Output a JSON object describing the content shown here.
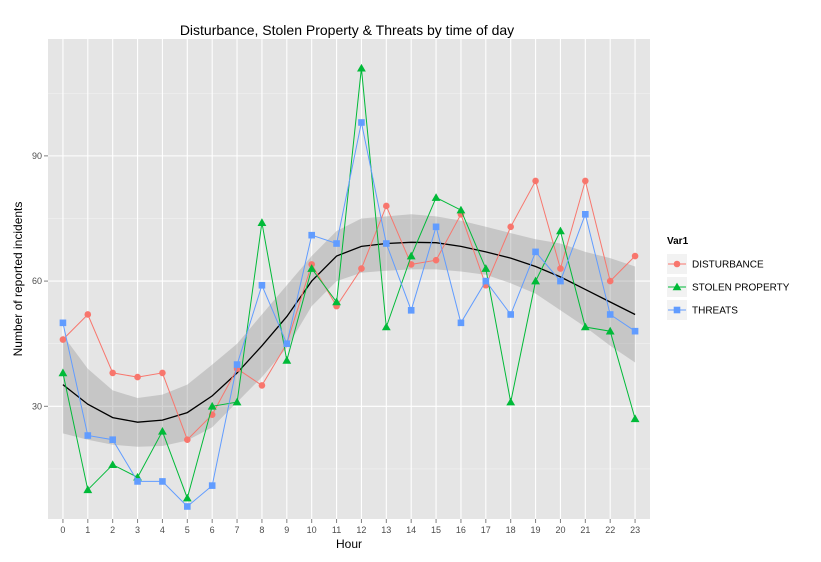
{
  "chart_data": {
    "type": "line",
    "title": "Disturbance, Stolen Property & Threats by time of day",
    "xlabel": "Hour",
    "ylabel": "Number of reported incidents",
    "x": [
      0,
      1,
      2,
      3,
      4,
      5,
      6,
      7,
      8,
      9,
      10,
      11,
      12,
      13,
      14,
      15,
      16,
      17,
      18,
      19,
      20,
      21,
      22,
      23
    ],
    "xlim": [
      -0.6,
      23.6
    ],
    "ylim": [
      3,
      118
    ],
    "yticks": [
      30,
      60,
      90
    ],
    "grid": true,
    "legend": {
      "title": "Var1",
      "placement": "right"
    },
    "series": [
      {
        "name": "DISTURBANCE",
        "marker": "circle",
        "color": "#F8766D",
        "values": [
          46,
          52,
          38,
          37,
          38,
          22,
          28,
          39,
          35,
          45,
          64,
          54,
          63,
          78,
          64,
          65,
          76,
          59,
          73,
          84,
          63,
          84,
          60,
          66
        ]
      },
      {
        "name": "STOLEN PROPERTY",
        "marker": "triangle",
        "color": "#00BA38",
        "values": [
          38,
          10,
          16,
          13,
          24,
          8,
          30,
          31,
          74,
          41,
          63,
          55,
          111,
          49,
          66,
          80,
          77,
          63,
          31,
          60,
          72,
          49,
          48,
          27
        ]
      },
      {
        "name": "THREATS",
        "marker": "square",
        "color": "#619CFF",
        "values": [
          50,
          23,
          22,
          12,
          12,
          6,
          11,
          40,
          59,
          45,
          71,
          69,
          98,
          69,
          53,
          73,
          50,
          60,
          52,
          67,
          60,
          76,
          52,
          48
        ]
      }
    ],
    "smooth": {
      "color": "#000000",
      "band_color": "#999999",
      "mean": [
        35.2,
        30.5,
        27.3,
        26.2,
        26.7,
        28.5,
        32.5,
        38.0,
        44.5,
        51.5,
        60.0,
        66.0,
        68.3,
        69.0,
        69.3,
        69.2,
        68.3,
        67.0,
        65.5,
        63.5,
        61.0,
        58.0,
        55.0,
        52.0
      ],
      "lower": [
        23.5,
        22.0,
        20.8,
        20.3,
        20.5,
        21.8,
        25.0,
        31.0,
        37.0,
        44.0,
        54.0,
        60.0,
        62.0,
        62.5,
        62.8,
        62.8,
        62.3,
        61.5,
        59.5,
        57.0,
        53.0,
        49.0,
        44.5,
        40.5
      ],
      "upper": [
        47.0,
        39.0,
        33.8,
        32.0,
        32.8,
        35.2,
        40.0,
        45.0,
        52.0,
        59.0,
        66.0,
        72.0,
        75.0,
        75.5,
        76.0,
        75.5,
        74.5,
        73.0,
        71.5,
        70.0,
        69.0,
        67.0,
        65.5,
        63.5
      ]
    }
  }
}
